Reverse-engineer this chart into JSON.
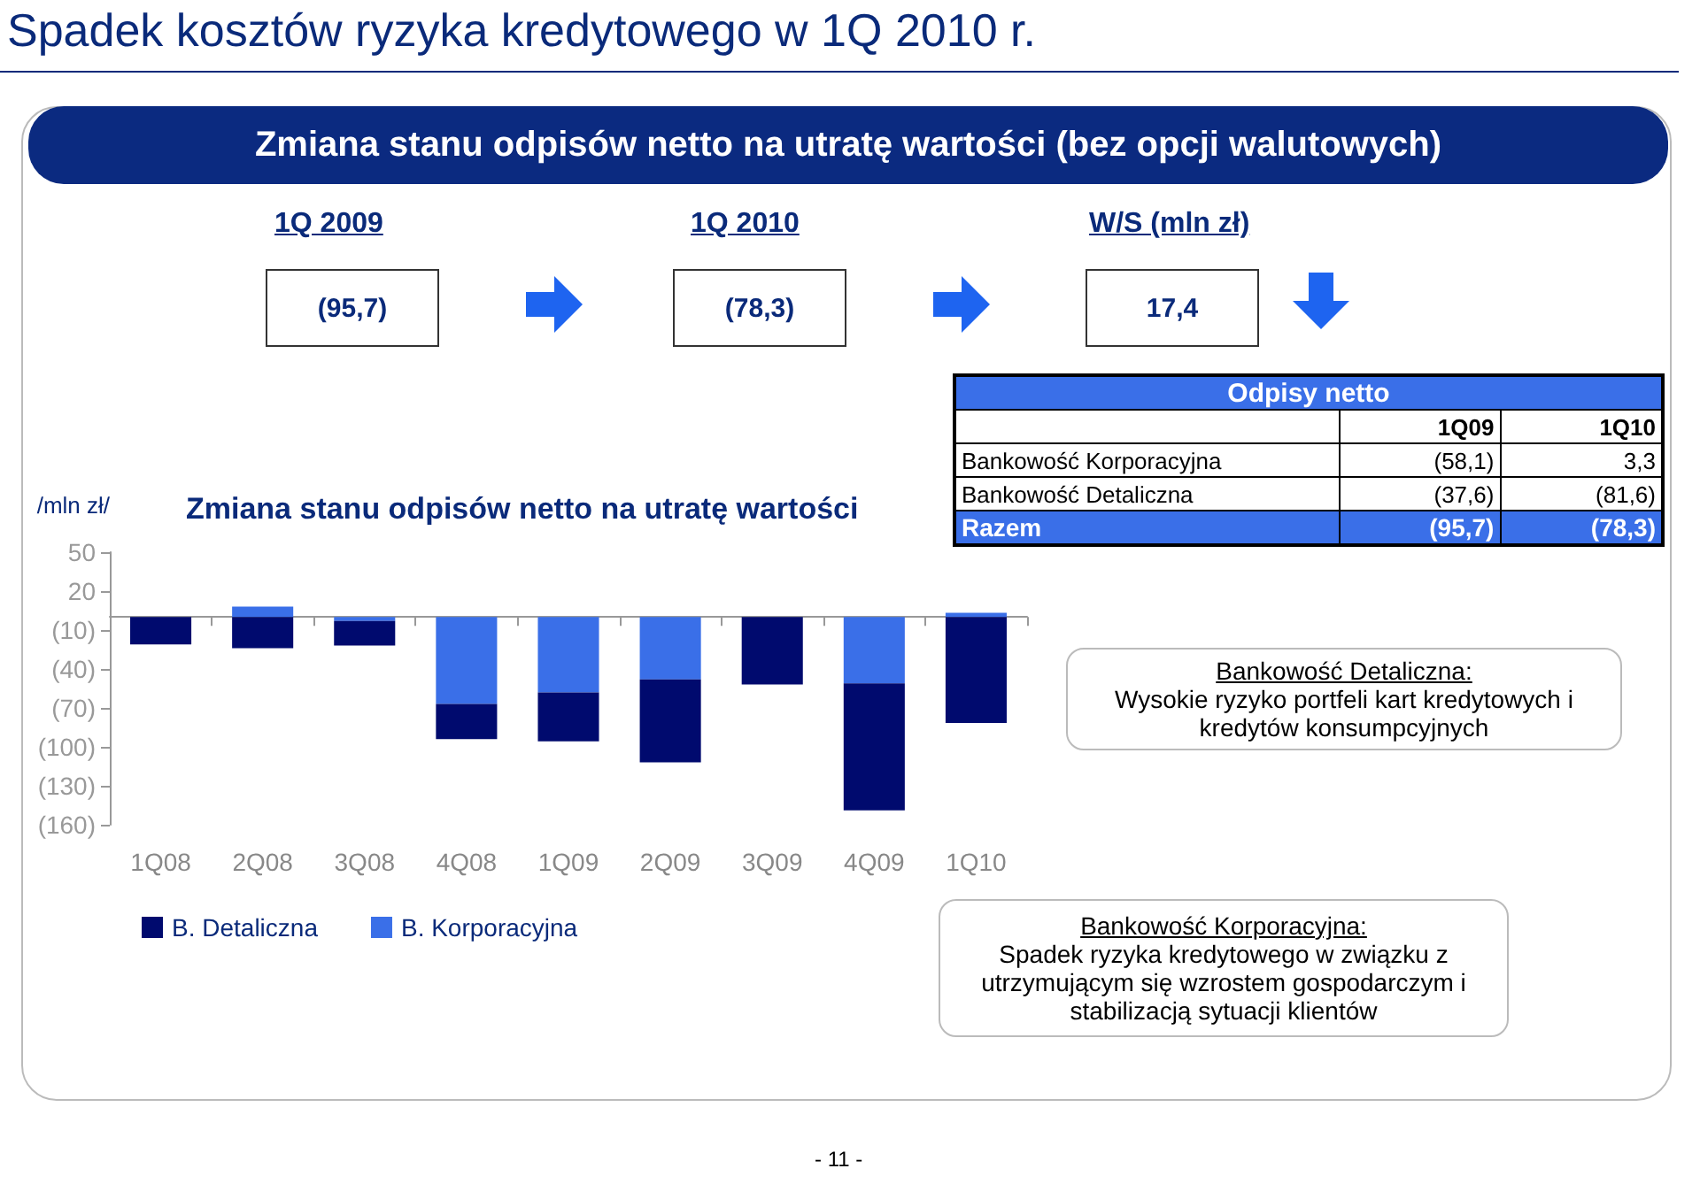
{
  "chart_data": {
    "type": "bar",
    "title": "Zmiana stanu odpisów netto na utratę wartości",
    "ylabel": "/mln zł/",
    "categories": [
      "1Q08",
      "2Q08",
      "3Q08",
      "4Q08",
      "1Q09",
      "2Q09",
      "3Q09",
      "4Q09",
      "1Q10"
    ],
    "stacked": true,
    "series": [
      {
        "name": "B. Korporacyjna",
        "color": "#3a6fe8",
        "values": [
          0,
          8,
          -3,
          -67,
          -58.1,
          -48,
          0,
          -51,
          3.3
        ]
      },
      {
        "name": "B. Detaliczna",
        "color": "#000a6e",
        "values": [
          -21,
          -24,
          -19,
          -27,
          -37.6,
          -64,
          -52,
          -98,
          -81.6
        ]
      }
    ],
    "ylim": [
      -160,
      50
    ],
    "yticks": [
      {
        "value": 50,
        "label": "50"
      },
      {
        "value": 20,
        "label": "20"
      },
      {
        "value": -10,
        "label": "(10)"
      },
      {
        "value": -40,
        "label": "(40)"
      },
      {
        "value": -70,
        "label": "(70)"
      },
      {
        "value": -100,
        "label": "(100)"
      },
      {
        "value": -130,
        "label": "(130)"
      },
      {
        "value": -160,
        "label": "(160)"
      }
    ],
    "grid": false,
    "legend": "bottom left",
    "annotations": [
      "Spadek kosztów ryzyka kredytowego w 1Q 2010 r.",
      "Zmiana stanu odpisów netto na utratę wartości (bez opcji walutowych)",
      "1Q 2009",
      "1Q 2010",
      "W/S (mln zł)",
      "(95,7)",
      "(78,3)",
      "17,4",
      "Odpisy netto",
      "1Q09",
      "1Q10",
      "Bankowość Korporacyjna",
      "(58,1)",
      "3,3",
      "Bankowość Detaliczna",
      "(37,6)",
      "(81,6)",
      "Razem",
      "(95,7)",
      "(78,3)",
      "Bankowość Detaliczna:",
      "Wysokie ryzyko portfeli kart kredytowych i kredytów  konsumpcyjnych",
      "Bankowość Korporacyjna:",
      "Spadek ryzyka kredytowego w związku z utrzymującym się wzrostem gospodarczym i stabilizacją sytuacji klientów",
      "- 11 -"
    ]
  }
}
